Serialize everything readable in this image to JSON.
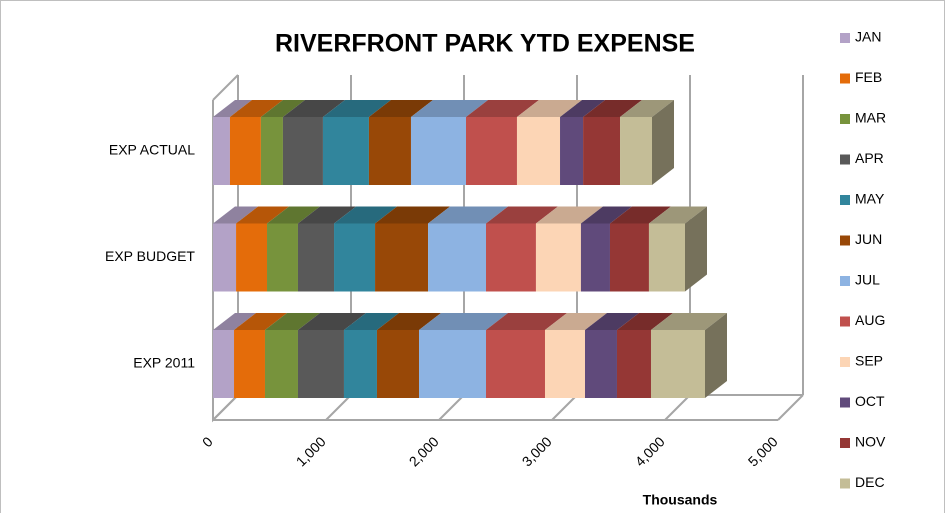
{
  "chart_data": {
    "type": "bar3d_stacked_horizontal",
    "title": "RIVERFRONT PARK YTD EXPENSE",
    "x_label": "Thousands",
    "categories": [
      "EXP 2011",
      "EXP BUDGET",
      "EXP ACTUAL"
    ],
    "series": [
      {
        "name": "JAN",
        "color": "#b3a2c7",
        "values": [
          186,
          204,
          150
        ]
      },
      {
        "name": "FEB",
        "color": "#e46c0a",
        "values": [
          274,
          274,
          274
        ]
      },
      {
        "name": "MAR",
        "color": "#77933c",
        "values": [
          292,
          274,
          195
        ]
      },
      {
        "name": "APR",
        "color": "#595959",
        "values": [
          407,
          319,
          354
        ]
      },
      {
        "name": "MAY",
        "color": "#31859c",
        "values": [
          292,
          363,
          407
        ]
      },
      {
        "name": "JUN",
        "color": "#984807",
        "values": [
          372,
          469,
          372
        ]
      },
      {
        "name": "JUL",
        "color": "#8db3e2",
        "values": [
          593,
          513,
          487
        ]
      },
      {
        "name": "AUG",
        "color": "#c0504d",
        "values": [
          522,
          442,
          451
        ]
      },
      {
        "name": "SEP",
        "color": "#fcd5b5",
        "values": [
          354,
          398,
          381
        ]
      },
      {
        "name": "OCT",
        "color": "#604a7b",
        "values": [
          283,
          257,
          204
        ]
      },
      {
        "name": "NOV",
        "color": "#953735",
        "values": [
          301,
          345,
          327
        ]
      },
      {
        "name": "DEC",
        "color": "#c4bd97",
        "values": [
          478,
          319,
          283
        ]
      }
    ],
    "xlim": [
      0,
      5000
    ],
    "xticks": [
      0,
      {
        "value": 1000,
        "label": "1,000"
      },
      {
        "value": 2000,
        "label": "2,000"
      },
      {
        "value": 3000,
        "label": "3,000"
      },
      {
        "value": 4000,
        "label": "4,000"
      },
      {
        "value": 5000,
        "label": "5,000"
      }
    ],
    "grid": true,
    "legend": "right"
  }
}
